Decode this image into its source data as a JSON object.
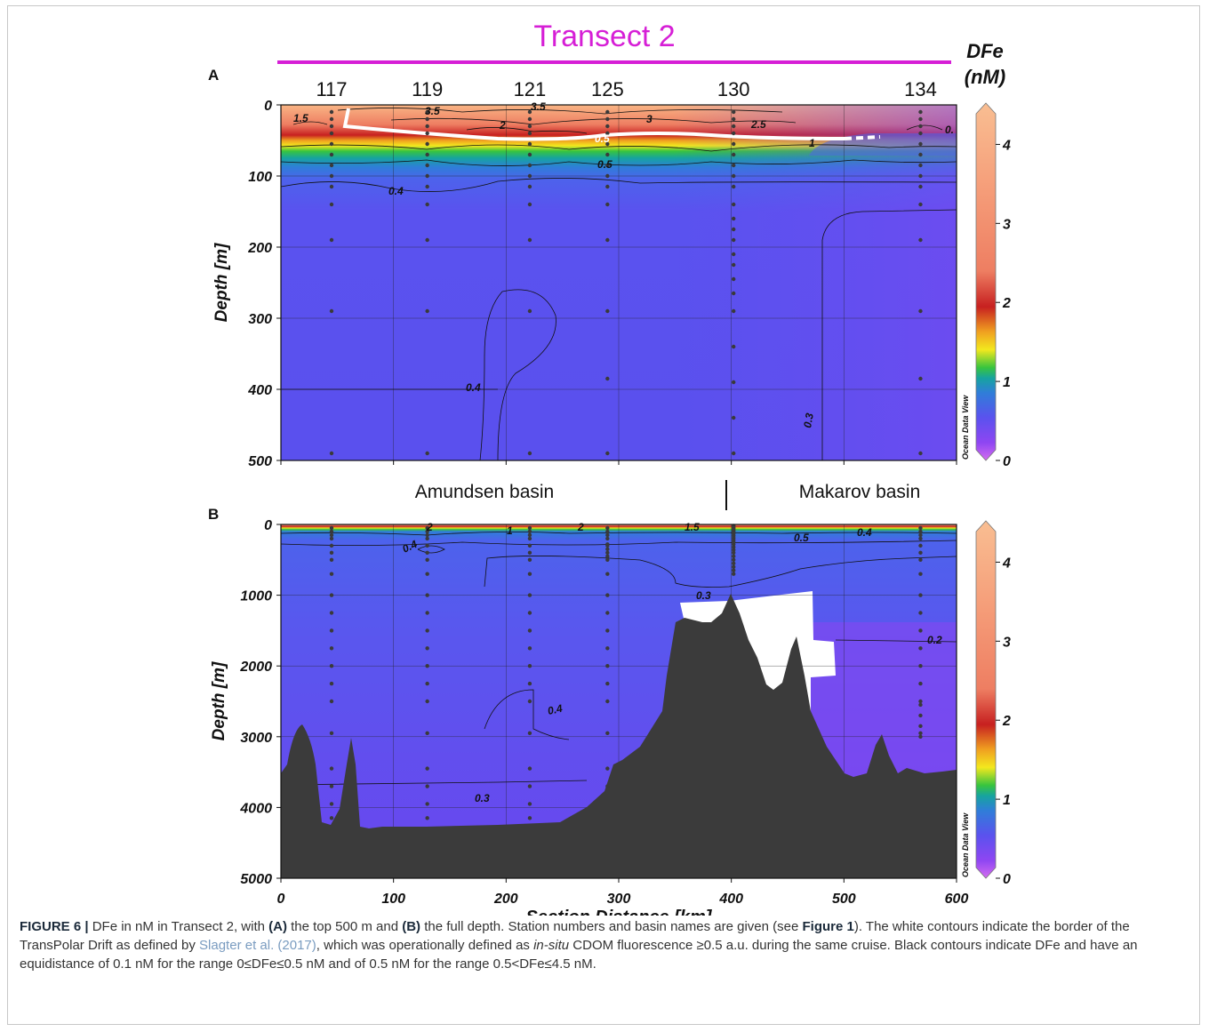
{
  "figure": {
    "title": "Transect 2",
    "colorbar_title_1": "DFe",
    "colorbar_title_2": "(nM)",
    "watermark": "Ocean Data View",
    "panel_a_label": "A",
    "panel_b_label": "B",
    "basins": [
      "Amundsen basin",
      "Makarov basin"
    ]
  },
  "chart_data": [
    {
      "panel": "A",
      "type": "heatmap",
      "variable": "DFe",
      "units": "nM",
      "xlabel": "Section Distance [km]",
      "ylabel": "Depth [m]",
      "xlim": [
        0,
        600
      ],
      "ylim": [
        500,
        0
      ],
      "x_ticks": [
        0,
        100,
        200,
        300,
        400,
        500,
        600
      ],
      "y_ticks": [
        0,
        100,
        200,
        300,
        400,
        500
      ],
      "colorbar_ticks": [
        0,
        1,
        2,
        3,
        4
      ],
      "colorbar_range": [
        0,
        4.5
      ],
      "stations": [
        {
          "id": "117",
          "distance_km": 45
        },
        {
          "id": "119",
          "distance_km": 130
        },
        {
          "id": "121",
          "distance_km": 221
        },
        {
          "id": "125",
          "distance_km": 290
        },
        {
          "id": "130",
          "distance_km": 402
        },
        {
          "id": "134",
          "distance_km": 568
        }
      ],
      "contour_labels": [
        "1.5",
        "3.5",
        "3.5",
        "3",
        "2.5",
        "2",
        "0.5",
        "0.5",
        "1",
        "0.4",
        "0.4",
        "0.3",
        "0."
      ]
    },
    {
      "panel": "B",
      "type": "heatmap",
      "variable": "DFe",
      "units": "nM",
      "xlabel": "Section Distance [km]",
      "ylabel": "Depth [m]",
      "xlim": [
        0,
        600
      ],
      "ylim": [
        5000,
        0
      ],
      "x_ticks": [
        0,
        100,
        200,
        300,
        400,
        500,
        600
      ],
      "y_ticks": [
        0,
        1000,
        2000,
        3000,
        4000,
        5000
      ],
      "colorbar_ticks": [
        0,
        1,
        2,
        3,
        4
      ],
      "colorbar_range": [
        0,
        4.5
      ],
      "contour_labels": [
        "0.4",
        "2",
        "1",
        "2",
        "1.5",
        "0.5",
        "0.4",
        "0.3",
        "0.2",
        "0.4",
        "0.3"
      ]
    }
  ],
  "caption": {
    "label": "FIGURE 6 |",
    "t1": " DFe in nM in Transect 2, with ",
    "a": "(A)",
    "t2": " the top 500 m and ",
    "b": "(B)",
    "t3": " the full depth. Station numbers and basin names are given (see ",
    "fig": "Figure 1",
    "t4": "). The white contours indicate the border of the TransPolar Drift as defined by ",
    "ref": "Slagter et al. (2017)",
    "t5": ", which was operationally defined as ",
    "insitu": "in-situ",
    "t6": " CDOM fluorescence ≥0.5 a.u. during the same cruise. Black contours indicate DFe and have an equidistance of 0.1 nM for the range 0≤DFe≤0.5 nM and of 0.5 nM for the range 0.5<DFe≤4.5 nM."
  }
}
